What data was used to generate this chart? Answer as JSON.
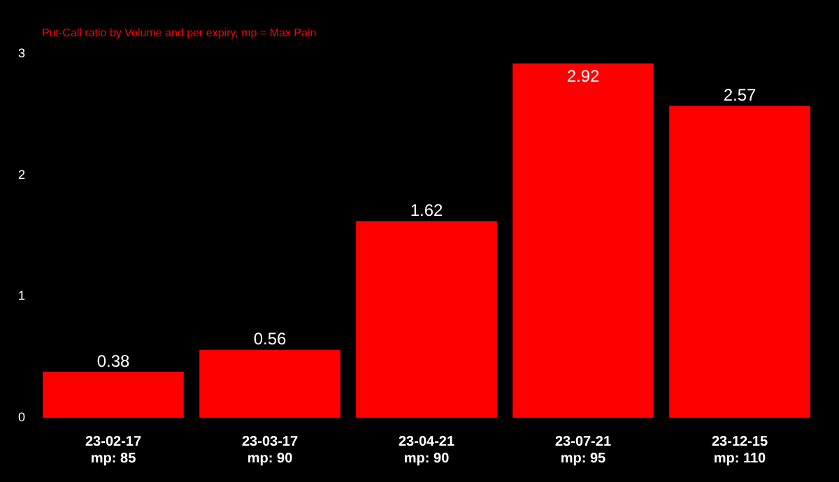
{
  "chart_data": {
    "type": "bar",
    "subtitle": "Put-Call ratio by Volume and per expiry, mp = Max Pain",
    "categories": [
      "23-02-17\nmp: 85",
      "23-03-17\nmp: 90",
      "23-04-21\nmp: 90",
      "23-07-21\nmp: 95",
      "23-12-15\nmp: 110"
    ],
    "values": [
      0.38,
      0.56,
      1.62,
      2.92,
      2.57
    ],
    "color": "#ff0000",
    "ylim": [
      0,
      3
    ],
    "yticks": [
      0,
      1,
      2,
      3
    ],
    "grid": false,
    "legend": false,
    "data_labels": true
  }
}
